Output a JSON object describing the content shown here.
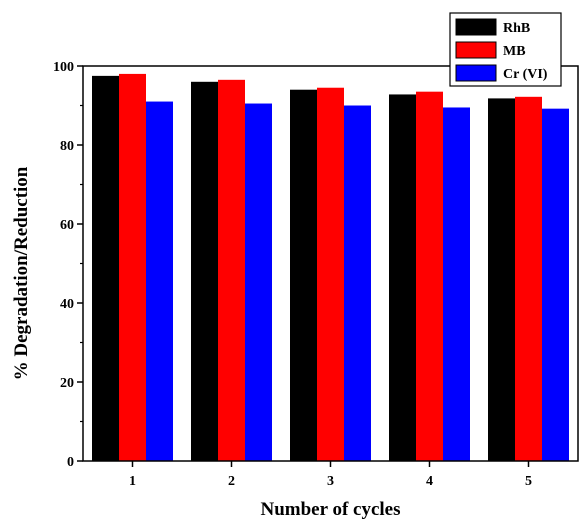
{
  "chart_data": {
    "type": "bar",
    "title": "",
    "xlabel": "Number of cycles",
    "ylabel": "% Degradation/Reduction",
    "categories": [
      "1",
      "2",
      "3",
      "4",
      "5"
    ],
    "ylim": [
      0,
      100
    ],
    "yticks": [
      0,
      20,
      40,
      60,
      80,
      100
    ],
    "grid": false,
    "legend_position": "top-right",
    "series": [
      {
        "name": "RhB",
        "color": "#000000",
        "values": [
          97.5,
          96,
          94,
          92.8,
          91.8
        ]
      },
      {
        "name": "MB",
        "color": "#ff0000",
        "values": [
          98,
          96.5,
          94.5,
          93.5,
          92.2
        ]
      },
      {
        "name": "Cr (VI)",
        "color": "#0000ff",
        "values": [
          91,
          90.5,
          90,
          89.5,
          89.2
        ]
      }
    ]
  }
}
